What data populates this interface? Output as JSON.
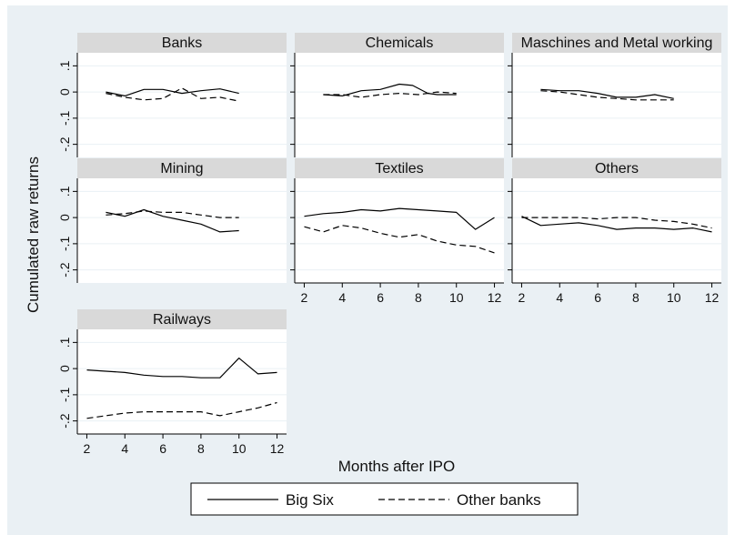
{
  "chart_data": {
    "type": "line",
    "xlabel": "Months after IPO",
    "ylabel": "Cumulated raw returns",
    "ylim": [
      -0.25,
      0.15
    ],
    "xlim": [
      1.5,
      12.5
    ],
    "y_ticks": [
      {
        "value": 0.1,
        "label": ".1"
      },
      {
        "value": 0.0,
        "label": "0"
      },
      {
        "value": -0.1,
        "label": "-.1"
      },
      {
        "value": -0.2,
        "label": "-.2"
      }
    ],
    "x_ticks": [
      {
        "value": 2,
        "label": "2"
      },
      {
        "value": 4,
        "label": "4"
      },
      {
        "value": 6,
        "label": "6"
      },
      {
        "value": 8,
        "label": "8"
      },
      {
        "value": 10,
        "label": "10"
      },
      {
        "value": 12,
        "label": "12"
      }
    ],
    "grid": true,
    "legend": {
      "position": "bottom",
      "entries": [
        {
          "name": "Big Six",
          "style": "solid"
        },
        {
          "name": "Other banks",
          "style": "dashed"
        }
      ]
    },
    "panels": [
      {
        "title": "Banks",
        "series": [
          {
            "name": "Big Six",
            "x": [
              3,
              4,
              5,
              6,
              7,
              8,
              9,
              10
            ],
            "y": [
              0.0,
              -0.015,
              0.01,
              0.01,
              -0.005,
              0.005,
              0.012,
              -0.005
            ]
          },
          {
            "name": "Other banks",
            "x": [
              3,
              4,
              5,
              6,
              7,
              8,
              9,
              10
            ],
            "y": [
              -0.005,
              -0.02,
              -0.03,
              -0.025,
              0.015,
              -0.025,
              -0.02,
              -0.035
            ]
          }
        ]
      },
      {
        "title": "Chemicals",
        "series": [
          {
            "name": "Big Six",
            "x": [
              3,
              4,
              5,
              6,
              7,
              7.7,
              8.5,
              9,
              10
            ],
            "y": [
              -0.01,
              -0.015,
              0.005,
              0.01,
              0.03,
              0.025,
              -0.005,
              -0.01,
              -0.01
            ]
          },
          {
            "name": "Other banks",
            "x": [
              3,
              4,
              5,
              6,
              7,
              8,
              9,
              10
            ],
            "y": [
              -0.01,
              -0.01,
              -0.02,
              -0.01,
              -0.005,
              -0.01,
              0.0,
              -0.005
            ]
          }
        ]
      },
      {
        "title": "Maschines and Metal working",
        "series": [
          {
            "name": "Big Six",
            "x": [
              3,
              4,
              5,
              6,
              7,
              8,
              9,
              10
            ],
            "y": [
              0.01,
              0.005,
              0.005,
              -0.005,
              -0.02,
              -0.02,
              -0.01,
              -0.025
            ]
          },
          {
            "name": "Other banks",
            "x": [
              3,
              4,
              5,
              6,
              7,
              8,
              9,
              10
            ],
            "y": [
              0.005,
              0.0,
              -0.01,
              -0.02,
              -0.025,
              -0.03,
              -0.03,
              -0.03
            ]
          }
        ]
      },
      {
        "title": "Mining",
        "series": [
          {
            "name": "Big Six",
            "x": [
              3,
              4,
              5,
              6,
              7,
              8,
              9,
              10
            ],
            "y": [
              0.02,
              0.005,
              0.03,
              0.005,
              -0.01,
              -0.025,
              -0.055,
              -0.05
            ]
          },
          {
            "name": "Other banks",
            "x": [
              3,
              4,
              5,
              6,
              7,
              8,
              9,
              10
            ],
            "y": [
              0.01,
              0.015,
              0.025,
              0.02,
              0.02,
              0.01,
              0.0,
              0.0
            ]
          }
        ]
      },
      {
        "title": "Textiles",
        "series": [
          {
            "name": "Big Six",
            "x": [
              2,
              3,
              4,
              5,
              6,
              7,
              8,
              9,
              10,
              11,
              12
            ],
            "y": [
              0.005,
              0.015,
              0.02,
              0.03,
              0.025,
              0.035,
              0.03,
              0.025,
              0.02,
              -0.045,
              0.0
            ]
          },
          {
            "name": "Other banks",
            "x": [
              2,
              3,
              4,
              5,
              6,
              7,
              8,
              9,
              10,
              11,
              12
            ],
            "y": [
              -0.035,
              -0.055,
              -0.03,
              -0.04,
              -0.06,
              -0.075,
              -0.065,
              -0.09,
              -0.105,
              -0.11,
              -0.135
            ]
          }
        ]
      },
      {
        "title": "Others",
        "series": [
          {
            "name": "Big Six",
            "x": [
              2,
              3,
              4,
              5,
              6,
              7,
              8,
              9,
              10,
              11,
              12
            ],
            "y": [
              0.005,
              -0.03,
              -0.025,
              -0.02,
              -0.03,
              -0.045,
              -0.04,
              -0.04,
              -0.045,
              -0.04,
              -0.055
            ]
          },
          {
            "name": "Other banks",
            "x": [
              2,
              3,
              4,
              5,
              6,
              7,
              8,
              9,
              10,
              11,
              12
            ],
            "y": [
              0.0,
              0.0,
              0.0,
              0.0,
              -0.005,
              0.0,
              0.0,
              -0.01,
              -0.015,
              -0.025,
              -0.04
            ]
          }
        ]
      },
      {
        "title": "Railways",
        "series": [
          {
            "name": "Big Six",
            "x": [
              2,
              3,
              4,
              5,
              6,
              7,
              8,
              9,
              10,
              11,
              12
            ],
            "y": [
              -0.005,
              -0.01,
              -0.015,
              -0.025,
              -0.03,
              -0.03,
              -0.035,
              -0.035,
              0.04,
              -0.02,
              -0.015
            ]
          },
          {
            "name": "Other banks",
            "x": [
              2,
              3,
              4,
              5,
              6,
              7,
              8,
              9,
              10,
              11,
              12
            ],
            "y": [
              -0.19,
              -0.18,
              -0.17,
              -0.165,
              -0.165,
              -0.165,
              -0.165,
              -0.18,
              -0.165,
              -0.15,
              -0.13
            ]
          }
        ]
      }
    ]
  }
}
